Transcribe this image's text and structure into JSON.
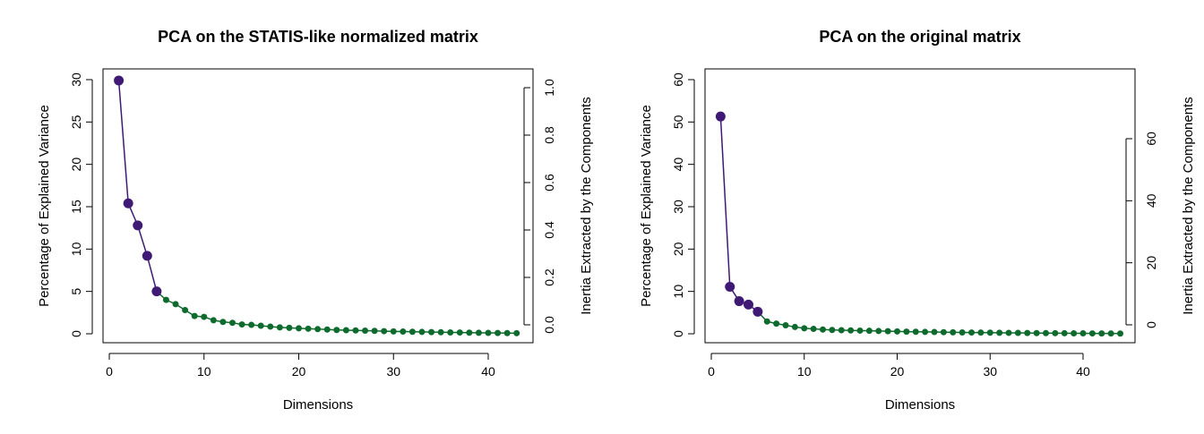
{
  "chart_data": [
    {
      "type": "scree-line",
      "title": "PCA on the STATIS-like normalized matrix",
      "xlabel": "Dimensions",
      "ylabel": "Percentage of Explained Variance",
      "y2label": "Inertia Extracted by the Components",
      "xlim": [
        0,
        43
      ],
      "ylim": [
        0,
        30
      ],
      "y2lim": [
        0,
        1.0
      ],
      "xticks": [
        "0",
        "10",
        "20",
        "30",
        "40"
      ],
      "xtick_values": [
        0,
        10,
        20,
        30,
        40
      ],
      "yticks": [
        "0",
        "5",
        "10",
        "15",
        "20",
        "25",
        "30"
      ],
      "ytick_values": [
        0,
        5,
        10,
        15,
        20,
        25,
        30
      ],
      "y2ticks": [
        "0.0",
        "0.2",
        "0.4",
        "0.6",
        "0.8",
        "1.0"
      ],
      "y2tick_values": [
        0,
        0.2,
        0.4,
        0.6,
        0.8,
        1.0
      ],
      "significant_components": 5,
      "colors": {
        "significant": "#3f1a75",
        "other": "#0e6b2d"
      },
      "x": [
        1,
        2,
        3,
        4,
        5,
        6,
        7,
        8,
        9,
        10,
        11,
        12,
        13,
        14,
        15,
        16,
        17,
        18,
        19,
        20,
        21,
        22,
        23,
        24,
        25,
        26,
        27,
        28,
        29,
        30,
        31,
        32,
        33,
        34,
        35,
        36,
        37,
        38,
        39,
        40,
        41,
        42,
        43
      ],
      "values": [
        29.9,
        15.4,
        12.8,
        9.2,
        5.0,
        4.0,
        3.5,
        2.8,
        2.1,
        2.0,
        1.6,
        1.4,
        1.3,
        1.1,
        1.05,
        0.95,
        0.85,
        0.75,
        0.7,
        0.65,
        0.6,
        0.55,
        0.5,
        0.45,
        0.42,
        0.4,
        0.37,
        0.34,
        0.31,
        0.28,
        0.26,
        0.24,
        0.22,
        0.2,
        0.18,
        0.16,
        0.15,
        0.13,
        0.12,
        0.1,
        0.09,
        0.08,
        0.07
      ]
    },
    {
      "type": "scree-line",
      "title": "PCA on the original matrix",
      "xlabel": "Dimensions",
      "ylabel": "Percentage of Explained Variance",
      "y2label": "Inertia Extracted by the Components",
      "xlim": [
        0,
        44
      ],
      "ylim": [
        0,
        60
      ],
      "y2lim": [
        0,
        60
      ],
      "xticks": [
        "0",
        "10",
        "20",
        "30",
        "40"
      ],
      "xtick_values": [
        0,
        10,
        20,
        30,
        40
      ],
      "yticks": [
        "0",
        "10",
        "20",
        "30",
        "40",
        "50",
        "60"
      ],
      "ytick_values": [
        0,
        10,
        20,
        30,
        40,
        50,
        60
      ],
      "y2ticks": [
        "0",
        "20",
        "40",
        "60"
      ],
      "y2tick_values": [
        0,
        20,
        40,
        60
      ],
      "significant_components": 5,
      "colors": {
        "significant": "#3f1a75",
        "other": "#0e6b2d"
      },
      "x": [
        1,
        2,
        3,
        4,
        5,
        6,
        7,
        8,
        9,
        10,
        11,
        12,
        13,
        14,
        15,
        16,
        17,
        18,
        19,
        20,
        21,
        22,
        23,
        24,
        25,
        26,
        27,
        28,
        29,
        30,
        31,
        32,
        33,
        34,
        35,
        36,
        37,
        38,
        39,
        40,
        41,
        42,
        43,
        44
      ],
      "values": [
        51.3,
        11.1,
        7.7,
        6.9,
        5.2,
        2.9,
        2.4,
        2.0,
        1.6,
        1.3,
        1.15,
        1.0,
        0.9,
        0.85,
        0.8,
        0.75,
        0.7,
        0.65,
        0.6,
        0.55,
        0.5,
        0.47,
        0.44,
        0.41,
        0.38,
        0.35,
        0.32,
        0.3,
        0.28,
        0.26,
        0.24,
        0.22,
        0.2,
        0.18,
        0.16,
        0.15,
        0.14,
        0.12,
        0.11,
        0.1,
        0.09,
        0.08,
        0.07,
        0.06
      ]
    }
  ]
}
